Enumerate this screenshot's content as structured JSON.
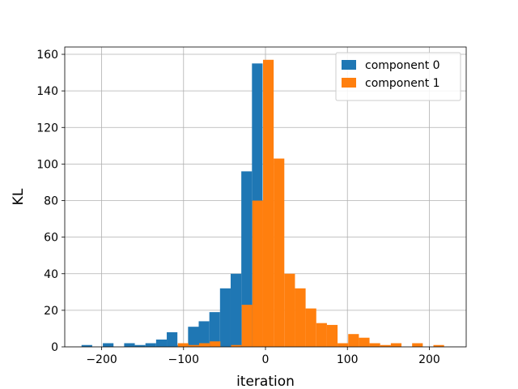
{
  "chart_data": {
    "type": "bar",
    "xlabel": "iteration",
    "ylabel": "KL",
    "xlim": [
      -245,
      245
    ],
    "ylim": [
      0,
      164
    ],
    "xticks": [
      -200,
      -100,
      0,
      100,
      200
    ],
    "xtick_labels": [
      "−200",
      "−100",
      "0",
      "100",
      "200"
    ],
    "yticks": [
      0,
      20,
      40,
      60,
      80,
      100,
      120,
      140,
      160
    ],
    "ytick_labels": [
      "0",
      "20",
      "40",
      "60",
      "80",
      "100",
      "120",
      "140",
      "160"
    ],
    "grid": true,
    "legend_position": "top-right",
    "series": [
      {
        "name": "component 0",
        "color": "#1f77b4",
        "bins": [
          {
            "x0": -224.5,
            "x1": -211.5,
            "value": 1
          },
          {
            "x0": -198.5,
            "x1": -185.5,
            "value": 2
          },
          {
            "x0": -172.5,
            "x1": -159.5,
            "value": 2
          },
          {
            "x0": -159.5,
            "x1": -146.5,
            "value": 1
          },
          {
            "x0": -146.5,
            "x1": -133.5,
            "value": 2
          },
          {
            "x0": -133.5,
            "x1": -120.5,
            "value": 4
          },
          {
            "x0": -120.5,
            "x1": -107.5,
            "value": 8
          },
          {
            "x0": -107.5,
            "x1": -94.5,
            "value": 1
          },
          {
            "x0": -94.5,
            "x1": -81.5,
            "value": 11
          },
          {
            "x0": -81.5,
            "x1": -68.5,
            "value": 14
          },
          {
            "x0": -68.5,
            "x1": -55.5,
            "value": 19
          },
          {
            "x0": -55.5,
            "x1": -42.5,
            "value": 32
          },
          {
            "x0": -42.5,
            "x1": -29.5,
            "value": 40
          },
          {
            "x0": -29.5,
            "x1": -16.5,
            "value": 96
          },
          {
            "x0": -16.5,
            "x1": -3.5,
            "value": 155
          },
          {
            "x0": -3.5,
            "x1": 9.5,
            "value": 1
          }
        ]
      },
      {
        "name": "component 1",
        "color": "#ff7f0e",
        "bins": [
          {
            "x0": -107,
            "x1": -94,
            "value": 2
          },
          {
            "x0": -94,
            "x1": -81,
            "value": 1
          },
          {
            "x0": -81,
            "x1": -68,
            "value": 2
          },
          {
            "x0": -68,
            "x1": -55,
            "value": 3
          },
          {
            "x0": -42,
            "x1": -29,
            "value": 1
          },
          {
            "x0": -29,
            "x1": -16,
            "value": 23
          },
          {
            "x0": -16,
            "x1": -3,
            "value": 80
          },
          {
            "x0": -3,
            "x1": 10,
            "value": 157
          },
          {
            "x0": 10,
            "x1": 23,
            "value": 103
          },
          {
            "x0": 23,
            "x1": 36,
            "value": 40
          },
          {
            "x0": 36,
            "x1": 49,
            "value": 32
          },
          {
            "x0": 49,
            "x1": 62,
            "value": 21
          },
          {
            "x0": 62,
            "x1": 75,
            "value": 13
          },
          {
            "x0": 75,
            "x1": 88,
            "value": 12
          },
          {
            "x0": 88,
            "x1": 101,
            "value": 2
          },
          {
            "x0": 101,
            "x1": 114,
            "value": 7
          },
          {
            "x0": 114,
            "x1": 127,
            "value": 5
          },
          {
            "x0": 127,
            "x1": 140,
            "value": 2
          },
          {
            "x0": 140,
            "x1": 153,
            "value": 1
          },
          {
            "x0": 153,
            "x1": 166,
            "value": 2
          },
          {
            "x0": 179,
            "x1": 192,
            "value": 2
          },
          {
            "x0": 205,
            "x1": 218,
            "value": 1
          }
        ]
      }
    ]
  }
}
